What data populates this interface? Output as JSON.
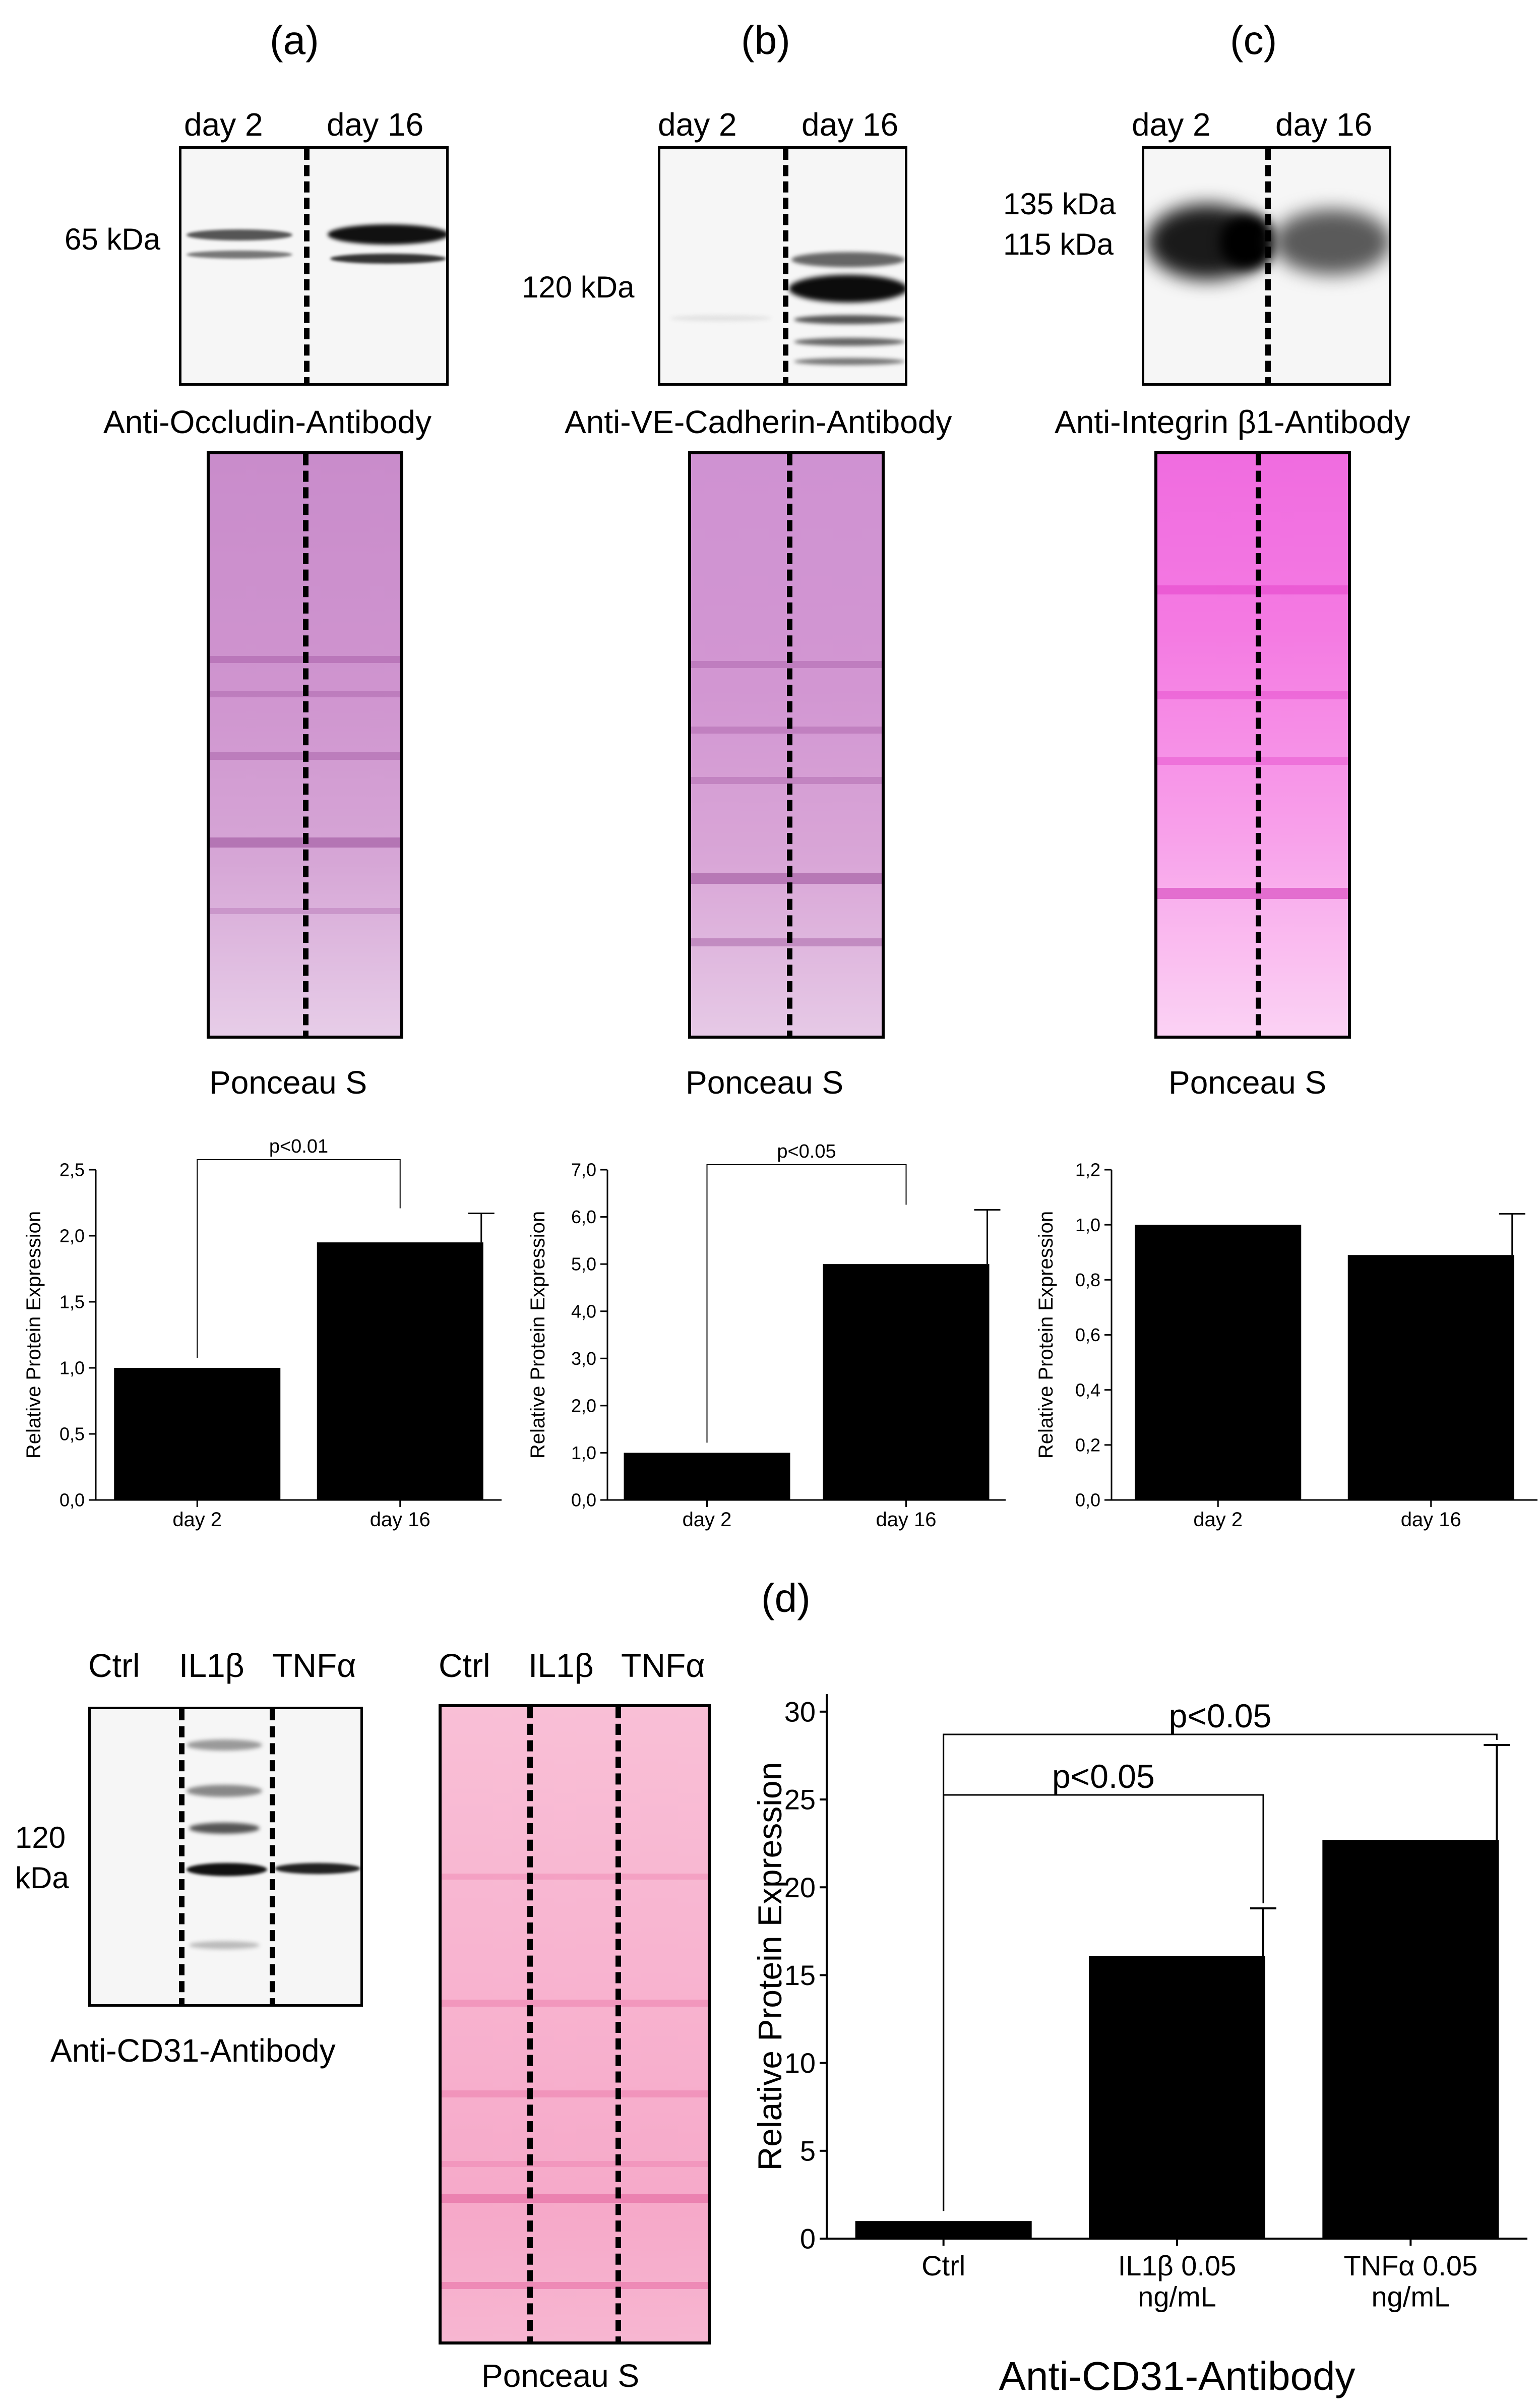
{
  "panels": {
    "a": {
      "label": "(a)",
      "lanes": [
        "day 2",
        "day 16"
      ],
      "mw_markers": [
        "65 kDa"
      ],
      "antibody": "Anti-Occludin-Antibody",
      "stain": "Ponceau S"
    },
    "b": {
      "label": "(b)",
      "lanes": [
        "day 2",
        "day 16"
      ],
      "mw_markers": [
        "120 kDa"
      ],
      "antibody": "Anti-VE-Cadherin-Antibody",
      "stain": "Ponceau S"
    },
    "c": {
      "label": "(c)",
      "lanes": [
        "day 2",
        "day 16"
      ],
      "mw_markers": [
        "135 kDa",
        "115 kDa"
      ],
      "antibody": "Anti-Integrin β1-Antibody",
      "stain": "Ponceau S"
    },
    "d": {
      "label": "(d)",
      "lanes": [
        "Ctrl",
        "IL1β",
        "TNFα"
      ],
      "mw_marker_line1": "120",
      "mw_marker_line2": "kDa",
      "antibody": "Anti-CD31-Antibody",
      "stain": "Ponceau S"
    }
  },
  "colors": {
    "bar": "#000000",
    "ponceau_purple": "#c97ac4",
    "ponceau_magenta": "#f27ce0",
    "ponceau_pink": "#f7a8cc"
  },
  "chart_data": [
    {
      "id": "a",
      "type": "bar",
      "categories": [
        "day 2",
        "day 16"
      ],
      "values": [
        1.0,
        1.95
      ],
      "errors": [
        0,
        0.22
      ],
      "ylabel": "Relative Protein Expression",
      "xlabel": "",
      "ylim": [
        0,
        2.5
      ],
      "yticks": [
        "0,0",
        "0,5",
        "1,0",
        "1,5",
        "2,0",
        "2,5"
      ],
      "annotations": [
        {
          "text": "p<0.01",
          "from": 0,
          "to": 1
        }
      ]
    },
    {
      "id": "b",
      "type": "bar",
      "categories": [
        "day 2",
        "day 16"
      ],
      "values": [
        1.0,
        5.0
      ],
      "errors": [
        0,
        1.15
      ],
      "ylabel": "Relative Protein Expression",
      "xlabel": "",
      "ylim": [
        0,
        7
      ],
      "yticks": [
        "0,0",
        "1,0",
        "2,0",
        "3,0",
        "4,0",
        "5,0",
        "6,0",
        "7,0"
      ],
      "annotations": [
        {
          "text": "p<0.05",
          "from": 0,
          "to": 1
        }
      ]
    },
    {
      "id": "c",
      "type": "bar",
      "categories": [
        "day 2",
        "day 16"
      ],
      "values": [
        1.0,
        0.89
      ],
      "errors": [
        0,
        0.15
      ],
      "ylabel": "Relative Protein Expression",
      "xlabel": "",
      "ylim": [
        0,
        1.2
      ],
      "yticks": [
        "0,0",
        "0,2",
        "0,4",
        "0,6",
        "0,8",
        "1,0",
        "1,2"
      ],
      "annotations": []
    },
    {
      "id": "d",
      "type": "bar",
      "categories": [
        "Ctrl",
        "IL1β 0.05 ng/mL",
        "TNFα 0.05 ng/mL"
      ],
      "category_lines": [
        [
          "Ctrl"
        ],
        [
          "IL1β 0.05",
          "ng/mL"
        ],
        [
          "TNFα 0.05",
          "ng/mL"
        ]
      ],
      "values": [
        1.0,
        16.1,
        22.7
      ],
      "errors": [
        0,
        2.7,
        5.4
      ],
      "ylabel": "Relative Protein Expression",
      "xlabel": "Anti-CD31-Antibody",
      "ylim": [
        0,
        31
      ],
      "yticks": [
        "0",
        "5",
        "10",
        "15",
        "20",
        "25",
        "30"
      ],
      "annotations": [
        {
          "text": "p<0.05",
          "from": 0,
          "to": 1
        },
        {
          "text": "p<0.05",
          "from": 0,
          "to": 2
        }
      ]
    }
  ]
}
